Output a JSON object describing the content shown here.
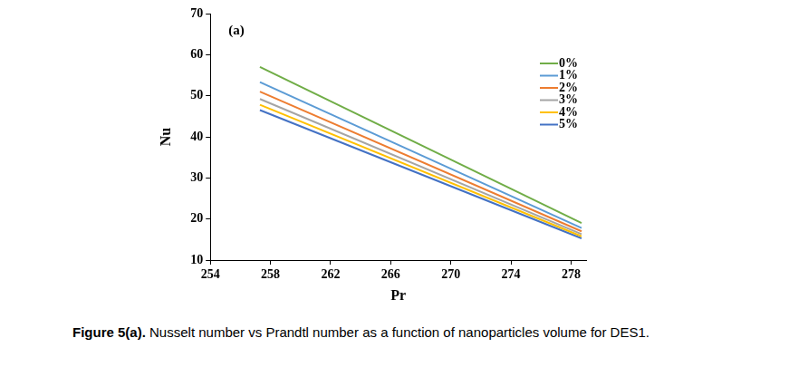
{
  "chart_data": {
    "type": "line",
    "annotation": "(a)",
    "x_label": "Pr",
    "y_label": "Nu",
    "xlim": [
      254,
      279
    ],
    "xticks": [
      254,
      258,
      262,
      266,
      270,
      274,
      278
    ],
    "ylim": [
      10,
      70
    ],
    "yticks": [
      10,
      20,
      30,
      40,
      50,
      60,
      70
    ],
    "grid": false,
    "legend": "upper right",
    "x": [
      257.3,
      278.7
    ],
    "series": [
      {
        "name": "0%",
        "color": "#70ad47",
        "values": [
          57.0,
          19.0
        ]
      },
      {
        "name": "1%",
        "color": "#5b9bd5",
        "values": [
          53.3,
          17.8
        ]
      },
      {
        "name": "2%",
        "color": "#ed7d31",
        "values": [
          51.0,
          17.0
        ]
      },
      {
        "name": "3%",
        "color": "#a5a5a5",
        "values": [
          49.2,
          16.3
        ]
      },
      {
        "name": "4%",
        "color": "#ffc000",
        "values": [
          47.8,
          15.8
        ]
      },
      {
        "name": "5%",
        "color": "#4472c4",
        "values": [
          46.5,
          15.3
        ]
      }
    ]
  },
  "caption": "Figure 5(a). Nusselt number vs Prandtl number as a function of nanoparticles volume for DES1."
}
